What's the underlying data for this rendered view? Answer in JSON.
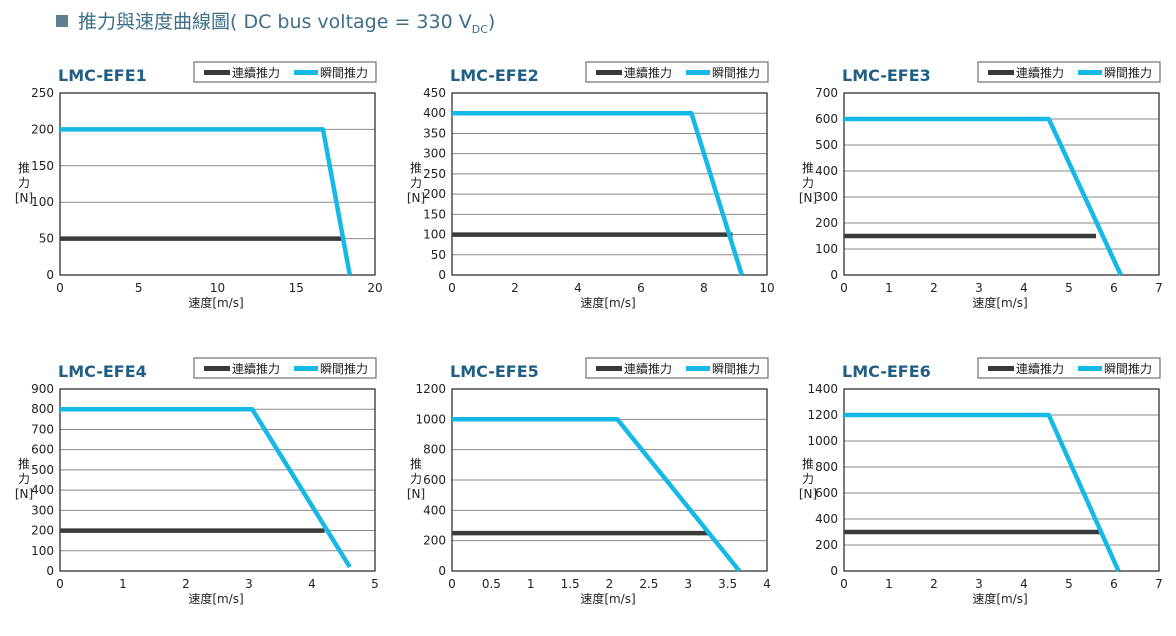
{
  "header": {
    "title_main": "推力與速度曲線圖( DC bus voltage = 330 V",
    "title_sub": "DC",
    "title_end": ")"
  },
  "colors": {
    "continuous": "#3a3a3a",
    "peak": "#16b8e6",
    "title": "#1f5f86",
    "header": "#3d6f88"
  },
  "legend": {
    "continuous": "連續推力",
    "peak": "瞬間推力"
  },
  "axis": {
    "ylabel_chars": [
      "推",
      "力",
      "[N]"
    ],
    "xlabel": "速度[m/s]"
  },
  "chart_data": [
    {
      "type": "line",
      "title": "LMC-EFE1",
      "xlim": [
        0,
        20
      ],
      "ylim": [
        0,
        250
      ],
      "xticks": [
        0,
        5,
        10,
        15,
        20
      ],
      "xtick_labels": [
        "0",
        "5",
        "10",
        "15",
        "20"
      ],
      "yticks": [
        0,
        50,
        100,
        150,
        200,
        250
      ],
      "series": [
        {
          "name": "連續推力",
          "x": [
            0,
            17.9
          ],
          "y": [
            50,
            50
          ]
        },
        {
          "name": "瞬間推力",
          "x": [
            0,
            16.7,
            18.4
          ],
          "y": [
            200,
            200,
            0
          ]
        }
      ]
    },
    {
      "type": "line",
      "title": "LMC-EFE2",
      "xlim": [
        0,
        10
      ],
      "ylim": [
        0,
        450
      ],
      "xticks": [
        0,
        2,
        4,
        6,
        8,
        10
      ],
      "xtick_labels": [
        "0",
        "2",
        "4",
        "6",
        "8",
        "10"
      ],
      "yticks": [
        0,
        50,
        100,
        150,
        200,
        250,
        300,
        350,
        400,
        450
      ],
      "series": [
        {
          "name": "連續推力",
          "x": [
            0,
            8.9
          ],
          "y": [
            100,
            100
          ]
        },
        {
          "name": "瞬間推力",
          "x": [
            0,
            7.6,
            9.2
          ],
          "y": [
            400,
            400,
            0
          ]
        }
      ]
    },
    {
      "type": "line",
      "title": "LMC-EFE3",
      "xlim": [
        0,
        7
      ],
      "ylim": [
        0,
        700
      ],
      "xticks": [
        0,
        1,
        2,
        3,
        4,
        5,
        6,
        7
      ],
      "xtick_labels": [
        "0",
        "1",
        "2",
        "3",
        "4",
        "5",
        "6",
        "7"
      ],
      "yticks": [
        0,
        100,
        200,
        300,
        400,
        500,
        600,
        700
      ],
      "series": [
        {
          "name": "連續推力",
          "x": [
            0,
            5.6
          ],
          "y": [
            150,
            150
          ]
        },
        {
          "name": "瞬間推力",
          "x": [
            0,
            4.55,
            6.15
          ],
          "y": [
            600,
            600,
            0
          ]
        }
      ]
    },
    {
      "type": "line",
      "title": "LMC-EFE4",
      "xlim": [
        0,
        5
      ],
      "ylim": [
        0,
        900
      ],
      "xticks": [
        0,
        1,
        2,
        3,
        4,
        5
      ],
      "xtick_labels": [
        "0",
        "1",
        "2",
        "3",
        "4",
        "5"
      ],
      "yticks": [
        0,
        100,
        200,
        300,
        400,
        500,
        600,
        700,
        800,
        900
      ],
      "series": [
        {
          "name": "連續推力",
          "x": [
            0,
            4.2
          ],
          "y": [
            200,
            200
          ]
        },
        {
          "name": "瞬間推力",
          "x": [
            0,
            3.05,
            4.6
          ],
          "y": [
            800,
            800,
            20
          ]
        }
      ]
    },
    {
      "type": "line",
      "title": "LMC-EFE5",
      "xlim": [
        0,
        4
      ],
      "ylim": [
        0,
        1200
      ],
      "xticks": [
        0,
        0.5,
        1,
        1.5,
        2,
        2.5,
        3,
        3.5,
        4
      ],
      "xtick_labels": [
        "0",
        "0.5",
        "1",
        "1.5",
        "2",
        "2.5",
        "3",
        "3.5",
        "4"
      ],
      "yticks": [
        0,
        200,
        400,
        600,
        800,
        1000,
        1200
      ],
      "series": [
        {
          "name": "連續推力",
          "x": [
            0,
            3.25
          ],
          "y": [
            250,
            250
          ]
        },
        {
          "name": "瞬間推力",
          "x": [
            0,
            2.1,
            3.65
          ],
          "y": [
            1000,
            1000,
            0
          ]
        }
      ]
    },
    {
      "type": "line",
      "title": "LMC-EFE6",
      "xlim": [
        0,
        7
      ],
      "ylim": [
        0,
        1400
      ],
      "xticks": [
        0,
        1,
        2,
        3,
        4,
        5,
        6,
        7
      ],
      "xtick_labels": [
        "0",
        "1",
        "2",
        "3",
        "4",
        "5",
        "6",
        "7"
      ],
      "yticks": [
        0,
        200,
        400,
        600,
        800,
        1000,
        1200,
        1400
      ],
      "series": [
        {
          "name": "連續推力",
          "x": [
            0,
            5.7
          ],
          "y": [
            300,
            300
          ]
        },
        {
          "name": "瞬間推力",
          "x": [
            0,
            4.55,
            6.1
          ],
          "y": [
            1200,
            1200,
            0
          ]
        }
      ]
    }
  ]
}
